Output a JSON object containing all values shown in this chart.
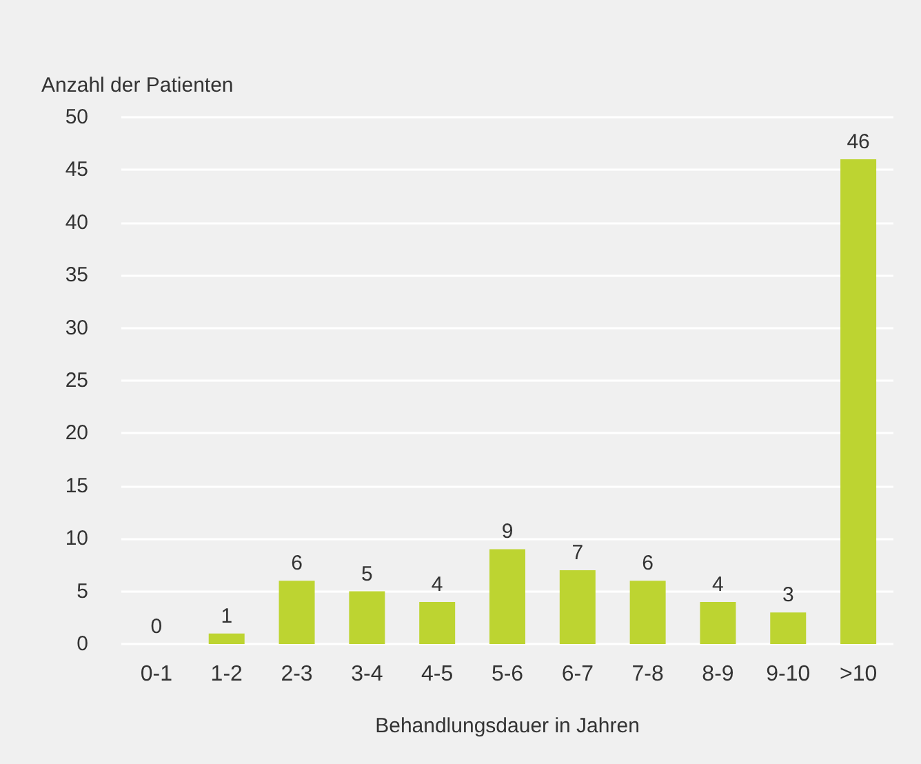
{
  "chart_data": {
    "type": "bar",
    "ylabel": "Anzahl der Patienten",
    "xlabel": "Behandlungsdauer in Jahren",
    "categories": [
      "0-1",
      "1-2",
      "2-3",
      "3-4",
      "4-5",
      "5-6",
      "6-7",
      "7-8",
      "8-9",
      "9-10",
      ">10"
    ],
    "values": [
      0,
      1,
      6,
      5,
      4,
      9,
      7,
      6,
      4,
      3,
      46
    ],
    "color": "#bdd431",
    "ylim": [
      0,
      50
    ],
    "yticks": [
      0,
      5,
      10,
      15,
      20,
      25,
      30,
      35,
      40,
      45,
      50
    ],
    "grid": "y",
    "data_labels": true
  }
}
